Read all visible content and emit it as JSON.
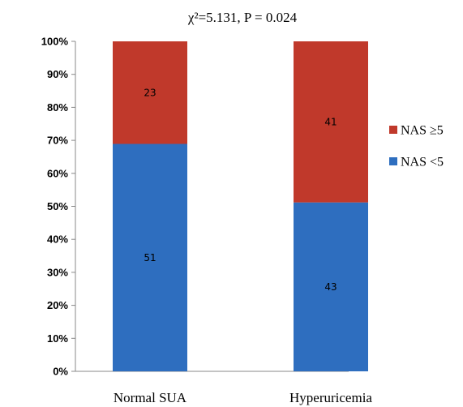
{
  "chart_data": {
    "type": "bar",
    "stacked": true,
    "normalized": true,
    "title": "χ²=5.131,  P = 0.024",
    "categories": [
      "Normal SUA",
      "Hyperuricemia"
    ],
    "series": [
      {
        "name": "NAS <5",
        "values": [
          51,
          43
        ],
        "color": "#2E6EBF"
      },
      {
        "name": "NAS ≥5",
        "values": [
          23,
          41
        ],
        "color": "#C0392B"
      }
    ],
    "ylim": [
      0,
      1
    ],
    "yticks": [
      {
        "value": 0.0,
        "label": "0%"
      },
      {
        "value": 0.1,
        "label": "10%"
      },
      {
        "value": 0.2,
        "label": "20%"
      },
      {
        "value": 0.3,
        "label": "30%"
      },
      {
        "value": 0.4,
        "label": "40%"
      },
      {
        "value": 0.5,
        "label": "50%"
      },
      {
        "value": 0.6,
        "label": "60%"
      },
      {
        "value": 0.7,
        "label": "70%"
      },
      {
        "value": 0.8,
        "label": "80%"
      },
      {
        "value": 0.9,
        "label": "90%"
      },
      {
        "value": 1.0,
        "label": "100%"
      }
    ],
    "legend": {
      "placement": "right",
      "entries": [
        "NAS ≥5",
        "NAS <5"
      ]
    },
    "grid": false
  }
}
